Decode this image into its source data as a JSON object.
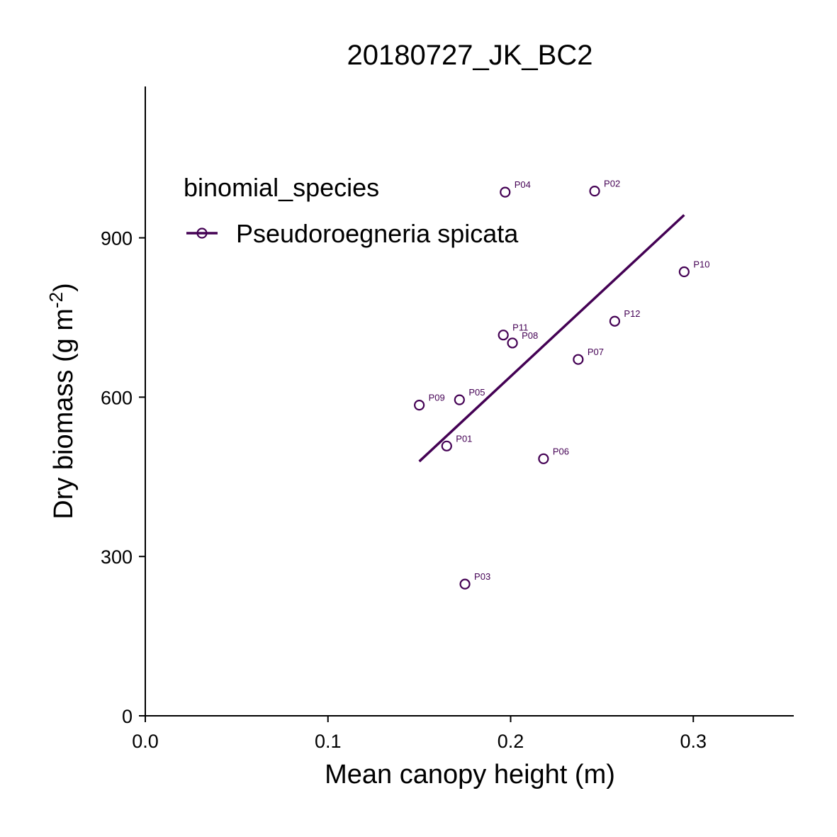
{
  "chart_data": {
    "type": "scatter",
    "title": "20180727_JK_BC2",
    "xlabel": "Mean canopy height (m)",
    "ylabel": {
      "main": "Dry biomass (g m",
      "superscript": "-2",
      "close": ")"
    },
    "xlim": [
      0,
      0.355
    ],
    "ylim": [
      0,
      1185
    ],
    "xticks": [
      0,
      0.1,
      0.2,
      0.3
    ],
    "xtick_labels": [
      "0.0",
      "0.1",
      "0.2",
      "0.3"
    ],
    "yticks": [
      0,
      300,
      600,
      900
    ],
    "ytick_labels": [
      "0",
      "300",
      "600",
      "900"
    ],
    "grid": false,
    "legend": {
      "title": "binomial_species",
      "position": "top-left",
      "entries": [
        "Pseudoroegneria spicata"
      ]
    },
    "series": [
      {
        "name": "Pseudoroegneria spicata",
        "color": "#440154",
        "points": [
          {
            "label": "P01",
            "x": 0.165,
            "y": 508
          },
          {
            "label": "P02",
            "x": 0.246,
            "y": 988
          },
          {
            "label": "P03",
            "x": 0.175,
            "y": 248
          },
          {
            "label": "P04",
            "x": 0.197,
            "y": 986
          },
          {
            "label": "P05",
            "x": 0.172,
            "y": 595
          },
          {
            "label": "P06",
            "x": 0.218,
            "y": 484
          },
          {
            "label": "P07",
            "x": 0.237,
            "y": 671
          },
          {
            "label": "P08",
            "x": 0.201,
            "y": 702
          },
          {
            "label": "P09",
            "x": 0.15,
            "y": 585
          },
          {
            "label": "P10",
            "x": 0.295,
            "y": 836
          },
          {
            "label": "P11",
            "x": 0.196,
            "y": 717
          },
          {
            "label": "P12",
            "x": 0.257,
            "y": 743
          }
        ],
        "fit_line": {
          "x": [
            0.15,
            0.295
          ],
          "y": [
            479,
            943
          ]
        }
      }
    ]
  }
}
